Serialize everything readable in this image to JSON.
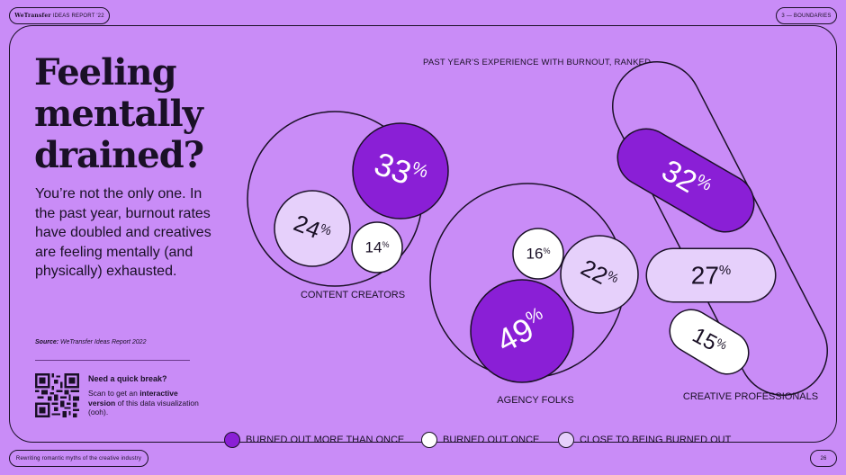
{
  "header": {
    "brand": "WeTransfer",
    "report": "IDEAS REPORT '22",
    "section": "3 — BOUNDARIES"
  },
  "footer": {
    "tagline": "Rewriting romantic myths of the creative industry",
    "page": "26"
  },
  "headline": "Feeling mentally drained?",
  "intro": "You’re not the only one. In the past year, burnout rates have doubled and creatives are feeling mentally (and physically) exhausted.",
  "source": {
    "label": "Source:",
    "text": "WeTransfer Ideas Report 2022"
  },
  "quick_break": {
    "title": "Need a quick break?",
    "text_pre": "Scan to get an ",
    "text_bold": "interactive version",
    "text_post": " of this data visualization (ooh)."
  },
  "colors": {
    "background": "#c98cf7",
    "more_than_once": "#8a1fd6",
    "once": "#ffffff",
    "close": "#e6d0fb",
    "ink": "#1a1026"
  },
  "chart_data": {
    "type": "bubble",
    "title": "PAST YEAR'S EXPERIENCE WITH BURNOUT, RANKED",
    "legend": [
      {
        "key": "more_than_once",
        "label": "BURNED OUT MORE THAN ONCE"
      },
      {
        "key": "once",
        "label": "BURNED OUT ONCE"
      },
      {
        "key": "close",
        "label": "CLOSE TO BEING BURNED OUT"
      }
    ],
    "groups": [
      {
        "name": "CONTENT CREATORS",
        "values": {
          "more_than_once": 33,
          "once": 14,
          "close": 24
        }
      },
      {
        "name": "AGENCY FOLKS",
        "values": {
          "more_than_once": 49,
          "once": 16,
          "close": 22
        }
      },
      {
        "name": "CREATIVE PROFESSIONALS",
        "values": {
          "more_than_once": 32,
          "once": 15,
          "close": 27
        }
      }
    ],
    "unit": "%"
  }
}
